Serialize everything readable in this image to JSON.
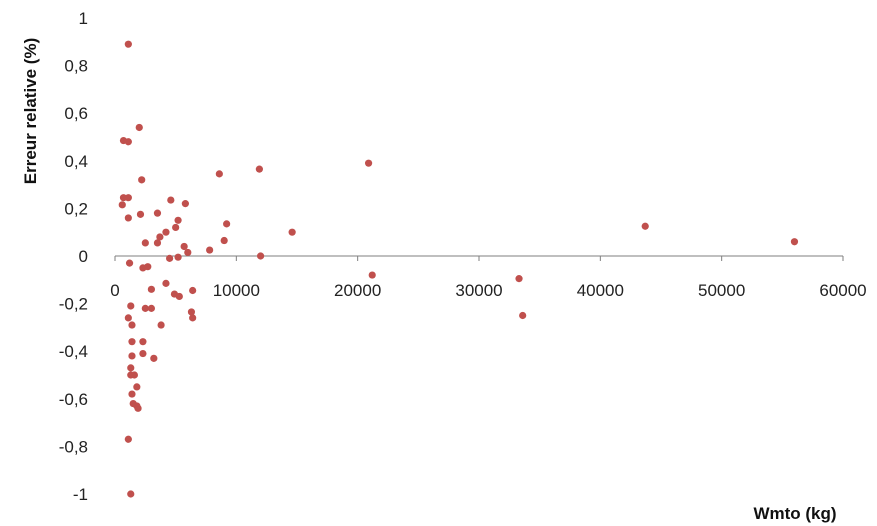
{
  "chart_data": {
    "type": "scatter",
    "title": "",
    "xlabel": "Wmto (kg)",
    "ylabel": "Erreur relative (%)",
    "xlim": [
      0,
      60000
    ],
    "ylim": [
      -1,
      1
    ],
    "x_ticks": [
      {
        "value": 0,
        "label": "0"
      },
      {
        "value": 10000,
        "label": "10000"
      },
      {
        "value": 20000,
        "label": "20000"
      },
      {
        "value": 30000,
        "label": "30000"
      },
      {
        "value": 40000,
        "label": "40000"
      },
      {
        "value": 50000,
        "label": "50000"
      },
      {
        "value": 60000,
        "label": "60000"
      }
    ],
    "y_ticks": [
      {
        "value": 1,
        "label": "1"
      },
      {
        "value": 0.8,
        "label": "0,8"
      },
      {
        "value": 0.6,
        "label": "0,6"
      },
      {
        "value": 0.4,
        "label": "0,4"
      },
      {
        "value": 0.2,
        "label": "0,2"
      },
      {
        "value": 0,
        "label": "0"
      },
      {
        "value": -0.2,
        "label": "-0,2"
      },
      {
        "value": -0.4,
        "label": "-0,4"
      },
      {
        "value": -0.6,
        "label": "-0,6"
      },
      {
        "value": -0.8,
        "label": "-0,8"
      },
      {
        "value": -1,
        "label": "-1"
      }
    ],
    "grid": false,
    "legend": "none",
    "marker_color": "#C0504D",
    "series": [
      {
        "points": [
          [
            1100,
            0.89
          ],
          [
            700,
            0.485
          ],
          [
            1100,
            0.48
          ],
          [
            2000,
            0.54
          ],
          [
            2200,
            0.32
          ],
          [
            700,
            0.245
          ],
          [
            1100,
            0.245
          ],
          [
            600,
            0.215
          ],
          [
            1100,
            0.16
          ],
          [
            2100,
            0.175
          ],
          [
            3500,
            0.18
          ],
          [
            4600,
            0.235
          ],
          [
            5800,
            0.22
          ],
          [
            5200,
            0.15
          ],
          [
            4200,
            0.1
          ],
          [
            3700,
            0.08
          ],
          [
            3500,
            0.055
          ],
          [
            2500,
            0.055
          ],
          [
            5000,
            0.12
          ],
          [
            5700,
            0.04
          ],
          [
            6000,
            0.015
          ],
          [
            7800,
            0.025
          ],
          [
            8600,
            0.345
          ],
          [
            9200,
            0.135
          ],
          [
            9000,
            0.065
          ],
          [
            11900,
            0.365
          ],
          [
            12000,
            0.0
          ],
          [
            14600,
            0.1
          ],
          [
            20900,
            0.39
          ],
          [
            21200,
            -0.08
          ],
          [
            33300,
            -0.095
          ],
          [
            33600,
            -0.25
          ],
          [
            43700,
            0.125
          ],
          [
            56000,
            0.06
          ],
          [
            1200,
            -0.03
          ],
          [
            2300,
            -0.05
          ],
          [
            2700,
            -0.045
          ],
          [
            4500,
            -0.01
          ],
          [
            5200,
            -0.005
          ],
          [
            3000,
            -0.14
          ],
          [
            4200,
            -0.115
          ],
          [
            6400,
            -0.145
          ],
          [
            4900,
            -0.16
          ],
          [
            5300,
            -0.17
          ],
          [
            2500,
            -0.22
          ],
          [
            3000,
            -0.22
          ],
          [
            1300,
            -0.21
          ],
          [
            1100,
            -0.26
          ],
          [
            6300,
            -0.235
          ],
          [
            6400,
            -0.26
          ],
          [
            1400,
            -0.29
          ],
          [
            3800,
            -0.29
          ],
          [
            1400,
            -0.36
          ],
          [
            2300,
            -0.36
          ],
          [
            2300,
            -0.41
          ],
          [
            3200,
            -0.43
          ],
          [
            1400,
            -0.42
          ],
          [
            1300,
            -0.47
          ],
          [
            1300,
            -0.5
          ],
          [
            1600,
            -0.5
          ],
          [
            1800,
            -0.55
          ],
          [
            1400,
            -0.58
          ],
          [
            1500,
            -0.62
          ],
          [
            1800,
            -0.63
          ],
          [
            1900,
            -0.64
          ],
          [
            1100,
            -0.77
          ],
          [
            1300,
            -1.0
          ]
        ]
      }
    ]
  }
}
